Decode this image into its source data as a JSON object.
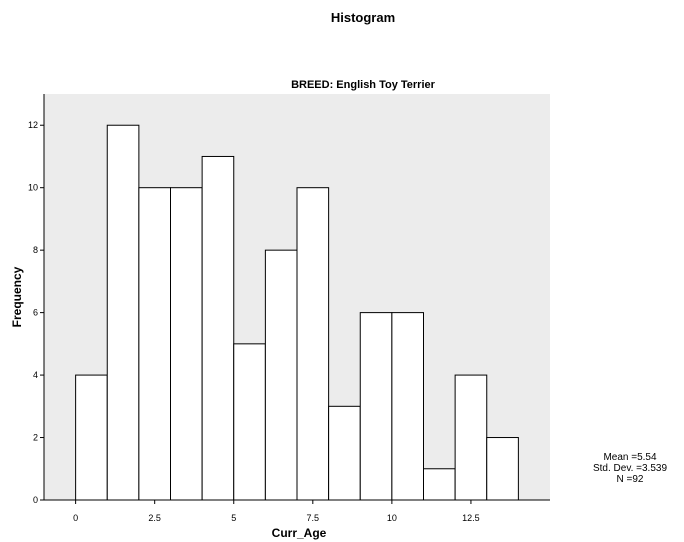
{
  "chart_data": {
    "type": "bar",
    "title": "Histogram",
    "subtitle": "BREED: English Toy Terrier",
    "xlabel": "Curr_Age",
    "ylabel": "Frequency",
    "bin_width": 1,
    "x": [
      0.5,
      1.5,
      2.5,
      3.5,
      4.5,
      5.5,
      6.5,
      7.5,
      8.5,
      9.5,
      10.5,
      11.5,
      12.5,
      13.5
    ],
    "values": [
      4,
      12,
      10,
      10,
      11,
      5,
      8,
      10,
      3,
      6,
      6,
      1,
      4,
      2
    ],
    "xlim": [
      -1,
      15
    ],
    "ylim": [
      0,
      13
    ],
    "x_ticks": [
      0,
      2.5,
      5,
      7.5,
      10,
      12.5
    ],
    "x_tick_labels": [
      "0",
      "2.5",
      "5",
      "7.5",
      "10",
      "12.5"
    ],
    "y_ticks": [
      0,
      2,
      4,
      6,
      8,
      10,
      12
    ],
    "y_tick_labels": [
      "0",
      "2",
      "4",
      "6",
      "8",
      "10",
      "12"
    ],
    "plot_background": "#ececec",
    "bar_fill": "#ffffff",
    "grid": false,
    "stats": {
      "mean": "Mean =5.54",
      "std_dev": "Std. Dev. =3.539",
      "n": "N =92"
    }
  }
}
